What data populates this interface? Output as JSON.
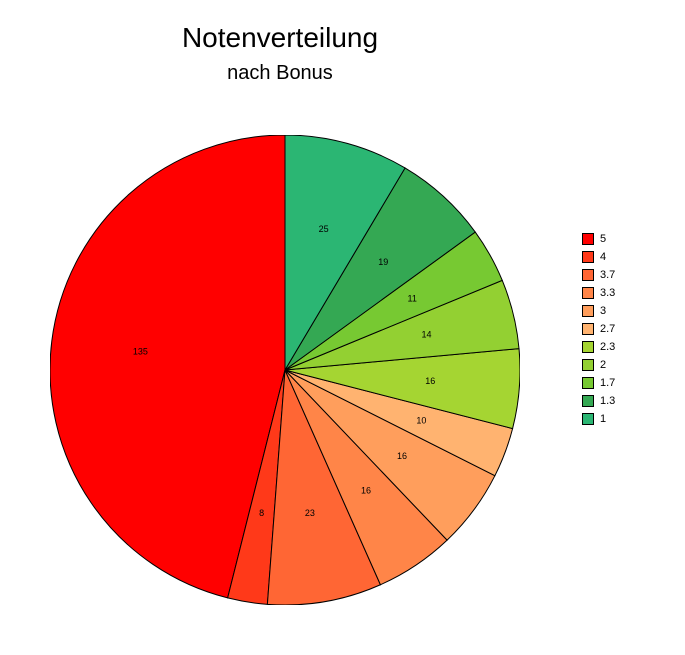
{
  "chart": {
    "type": "pie",
    "title": "Notenverteilung",
    "subtitle": "nach Bonus",
    "title_fontsize": 28,
    "subtitle_fontsize": 20,
    "background_color": "#ffffff",
    "stroke_color": "#000000",
    "stroke_width": 1,
    "label_fontsize": 9,
    "radius": 235,
    "label_radius_factor": 0.62,
    "slices": [
      {
        "label": "5",
        "value": 135,
        "color": "#ff0000"
      },
      {
        "label": "4",
        "value": 8,
        "color": "#ff3919"
      },
      {
        "label": "3.7",
        "value": 23,
        "color": "#ff6634"
      },
      {
        "label": "3.3",
        "value": 16,
        "color": "#ff8548"
      },
      {
        "label": "3",
        "value": 16,
        "color": "#ff9e5c"
      },
      {
        "label": "2.7",
        "value": 10,
        "color": "#ffb370"
      },
      {
        "label": "2.3",
        "value": 16,
        "color": "#a5d532"
      },
      {
        "label": "2",
        "value": 14,
        "color": "#93d032"
      },
      {
        "label": "1.7",
        "value": 11,
        "color": "#77c932"
      },
      {
        "label": "1.3",
        "value": 19,
        "color": "#34a853"
      },
      {
        "label": "1",
        "value": 25,
        "color": "#2bb673"
      }
    ]
  }
}
